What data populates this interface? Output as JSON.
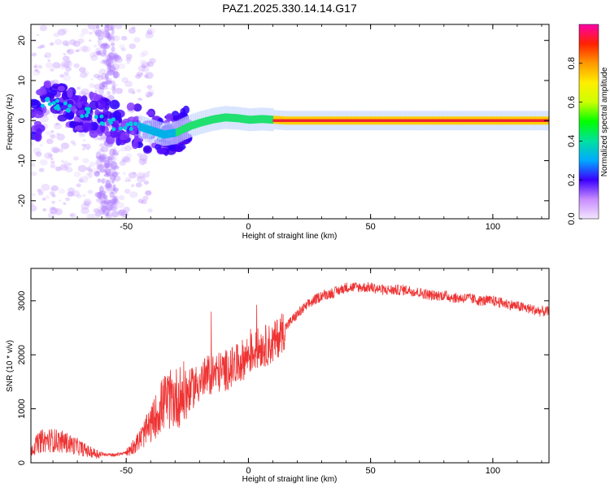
{
  "figure": {
    "title": "PAZ1.2025.330.14.14.G17"
  },
  "chart_data": [
    {
      "type": "heatmap",
      "xlabel": "Height of straight line (km)",
      "ylabel": "Frequency (Hz)",
      "xlim": [
        -89,
        123
      ],
      "ylim": [
        -24.5,
        24
      ],
      "xticks": [
        -50,
        0,
        50,
        100
      ],
      "yticks": [
        -20,
        -10,
        0,
        10,
        20
      ],
      "colorbar": {
        "label": "Normalized spectral amplitude",
        "range": [
          0,
          1
        ],
        "ticks": [
          0.0,
          0.2,
          0.4,
          0.6,
          0.8
        ]
      },
      "ridge_line": {
        "description_values_only": true,
        "x": [
          -85,
          -80,
          -75,
          -70,
          -65,
          -60,
          -55,
          -50,
          -45,
          -40,
          -35,
          -30,
          -25,
          -20,
          -15,
          -10,
          -5,
          0,
          5,
          10,
          15,
          20,
          30,
          50,
          80,
          100,
          123
        ],
        "y": [
          4,
          4.5,
          3,
          2,
          2,
          0.5,
          -1,
          -1,
          -1.5,
          -2.5,
          -3.5,
          -3,
          -1.5,
          -0.5,
          0.3,
          0.8,
          0.6,
          0.2,
          0.4,
          0.2,
          0,
          0,
          0,
          0,
          0,
          0,
          0
        ]
      }
    },
    {
      "type": "line",
      "xlabel": "Height of straight line (km)",
      "ylabel": "SNR (10 * v/v)",
      "xlim": [
        -89,
        123
      ],
      "ylim": [
        0,
        3600
      ],
      "xticks": [
        -50,
        0,
        50,
        100
      ],
      "yticks": [
        0,
        1000,
        2000,
        3000
      ],
      "color": "#ee3333",
      "series": [
        {
          "x": [
            -89,
            -85,
            -80,
            -75,
            -70,
            -65,
            -60,
            -55,
            -50,
            -45,
            -40,
            -35,
            -30,
            -25,
            -20,
            -15,
            -10,
            -5,
            0,
            5,
            10,
            15,
            20,
            25,
            30,
            35,
            40,
            45,
            50,
            55,
            60,
            65,
            70,
            75,
            80,
            85,
            90,
            95,
            100,
            105,
            110,
            115,
            120,
            123
          ],
          "y": [
            250,
            400,
            420,
            380,
            300,
            200,
            150,
            130,
            180,
            400,
            700,
            1100,
            1200,
            1300,
            1500,
            1650,
            1700,
            1800,
            2000,
            2150,
            2200,
            2500,
            2750,
            2950,
            3100,
            3150,
            3250,
            3250,
            3250,
            3200,
            3200,
            3200,
            3150,
            3100,
            3100,
            3050,
            3050,
            3000,
            3000,
            2950,
            2900,
            2850,
            2800,
            2800
          ]
        }
      ]
    }
  ]
}
